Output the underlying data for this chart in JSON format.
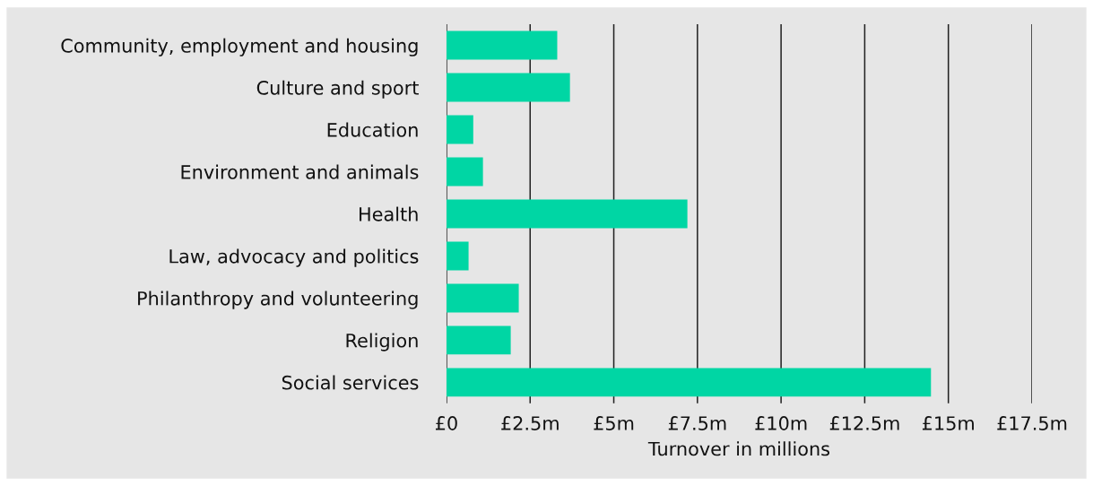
{
  "chart_data": {
    "type": "bar",
    "orientation": "horizontal",
    "xlabel": "Turnover in millions",
    "categories": [
      "Community, employment and housing",
      "Culture and sport",
      "Education",
      "Environment and animals",
      "Health",
      "Law, advocacy and politics",
      "Philanthropy and volunteering",
      "Religion",
      "Social services"
    ],
    "values": [
      3.31,
      3.69,
      0.8,
      1.09,
      7.2,
      0.66,
      2.16,
      1.92,
      14.48
    ],
    "color": "#00d6a4",
    "xlim": [
      0,
      17.5
    ],
    "xticks": [
      {
        "value": 0,
        "label": "£0"
      },
      {
        "value": 2.5,
        "label": "£2.5m"
      },
      {
        "value": 5,
        "label": "£5m"
      },
      {
        "value": 7.5,
        "label": "£7.5m"
      },
      {
        "value": 10,
        "label": "£10m"
      },
      {
        "value": 12.5,
        "label": "£12.5m"
      },
      {
        "value": 15,
        "label": "£15m"
      },
      {
        "value": 17.5,
        "label": "£17.5m"
      }
    ],
    "grid": "x"
  }
}
